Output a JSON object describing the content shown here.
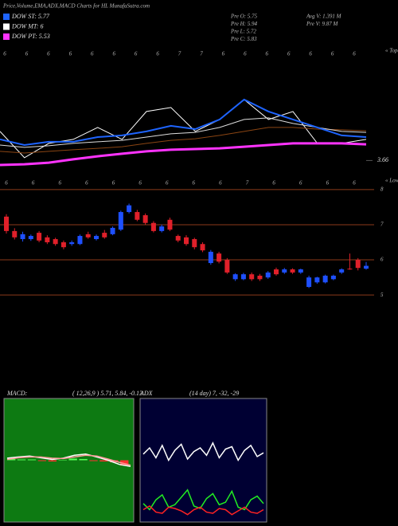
{
  "header": {
    "title": "Price,Volume,EMA,ADX,MACD Charts for HL MunafaSutra.com",
    "legend": [
      {
        "label": "DOW ST: 5.77",
        "color": "#1e64ff"
      },
      {
        "label": "DOW MT: 6",
        "color": "#ffffff"
      },
      {
        "label": "DOW PT: 5.53",
        "color": "#ff33ff"
      }
    ],
    "info": [
      "Pre  O: 5.75",
      "Pre  H: 5.94",
      "Pre  L: 5.72",
      "Pre  C: 5.83",
      "Avg V: 1.391 M",
      "Pre  V: 9.87 M"
    ]
  },
  "chart_data": [
    {
      "type": "line",
      "title": "« Topa",
      "date_labels": [
        "6",
        "6",
        "6",
        "6",
        "6",
        "6",
        "6",
        "6",
        "7",
        "7",
        "6",
        "6",
        "6",
        "6",
        "6",
        "6",
        "6"
      ],
      "ylim": [
        3.3,
        8.4
      ],
      "yticks": [
        3.66
      ],
      "series": [
        {
          "color": "#ffffff",
          "width": 1,
          "values": [
            4.9,
            3.78,
            4.39,
            4.56,
            5.07,
            4.56,
            5.75,
            5.92,
            4.9,
            5.41,
            6.26,
            5.41,
            5.75,
            4.39,
            4.39,
            4.56
          ]
        },
        {
          "color": "#8b4513",
          "width": 1,
          "values": [
            4.05,
            3.98,
            4.05,
            4.12,
            4.18,
            4.25,
            4.39,
            4.52,
            4.59,
            4.73,
            4.9,
            5.07,
            5.07,
            5.0,
            4.97,
            4.93
          ]
        },
        {
          "color": "#dddddd",
          "width": 1,
          "values": [
            4.32,
            4.22,
            4.29,
            4.39,
            4.46,
            4.52,
            4.66,
            4.8,
            4.86,
            5.07,
            5.41,
            5.48,
            5.24,
            5.07,
            4.9,
            4.86
          ]
        },
        {
          "color": "#1e64ff",
          "width": 2,
          "values": [
            4.56,
            4.32,
            4.46,
            4.46,
            4.66,
            4.73,
            4.9,
            5.14,
            5.0,
            5.41,
            6.26,
            5.75,
            5.41,
            5.07,
            4.73,
            4.66
          ]
        },
        {
          "color": "#ff33ff",
          "width": 3,
          "values": [
            3.47,
            3.5,
            3.57,
            3.71,
            3.84,
            3.95,
            4.05,
            4.12,
            4.15,
            4.18,
            4.25,
            4.32,
            4.39,
            4.39,
            4.39,
            4.35
          ]
        }
      ]
    },
    {
      "type": "candlestick",
      "title": "« Lowes",
      "date_labels": [
        "6",
        "6",
        "6",
        "6",
        "6",
        "6",
        "6",
        "6",
        "6",
        "7",
        "6",
        "6",
        "6",
        "6"
      ],
      "ylim": [
        4.8,
        8.2
      ],
      "yticks": [
        5,
        6,
        7,
        8
      ],
      "up_color": "#1e50ff",
      "down_color": "#e0202a",
      "grid_color": "#8b3a1a",
      "open": [
        7.23,
        6.82,
        6.59,
        6.59,
        6.77,
        6.64,
        6.59,
        6.5,
        6.45,
        6.45,
        6.73,
        6.59,
        6.77,
        6.73,
        6.86,
        7.36,
        7.36,
        7.27,
        7.05,
        6.82,
        7.14,
        6.68,
        6.64,
        6.59,
        6.45,
        5.91,
        6.18,
        6.0,
        5.45,
        5.45,
        5.59,
        5.55,
        5.5,
        5.73,
        5.64,
        5.73,
        5.64,
        5.23,
        5.36,
        5.36,
        5.45,
        5.64,
        5.75,
        6.0,
        5.75
      ],
      "high": [
        7.3,
        6.9,
        6.8,
        6.72,
        6.82,
        6.7,
        6.63,
        6.55,
        6.55,
        6.72,
        6.8,
        6.72,
        6.85,
        6.95,
        7.4,
        7.6,
        7.42,
        7.32,
        7.1,
        7.0,
        7.2,
        6.72,
        6.7,
        6.63,
        6.5,
        6.28,
        6.23,
        6.05,
        5.62,
        5.63,
        5.64,
        5.6,
        5.68,
        5.78,
        5.77,
        5.76,
        5.75,
        5.55,
        5.52,
        5.58,
        5.58,
        5.76,
        6.18,
        6.05,
        5.94
      ],
      "low": [
        6.75,
        6.58,
        6.52,
        6.54,
        6.5,
        6.45,
        6.4,
        6.3,
        6.4,
        6.42,
        6.6,
        6.55,
        6.6,
        6.7,
        6.82,
        7.32,
        7.1,
        7.0,
        6.78,
        6.78,
        6.82,
        6.5,
        6.4,
        6.3,
        6.22,
        5.86,
        5.9,
        5.6,
        5.4,
        5.42,
        5.4,
        5.4,
        5.46,
        5.55,
        5.6,
        5.6,
        5.6,
        5.2,
        5.32,
        5.33,
        5.42,
        5.6,
        5.72,
        5.7,
        5.72
      ],
      "close": [
        6.82,
        6.64,
        6.73,
        6.68,
        6.55,
        6.5,
        6.45,
        6.36,
        6.5,
        6.68,
        6.64,
        6.68,
        6.64,
        6.91,
        7.36,
        7.55,
        7.14,
        7.05,
        6.82,
        6.95,
        6.86,
        6.55,
        6.45,
        6.36,
        6.27,
        6.23,
        5.95,
        5.64,
        5.59,
        5.59,
        5.45,
        5.45,
        5.64,
        5.59,
        5.73,
        5.64,
        5.73,
        5.5,
        5.5,
        5.55,
        5.55,
        5.73,
        5.73,
        5.77,
        5.83
      ]
    },
    {
      "type": "macd",
      "title": "MACD:",
      "subtitle": "( 12,26,9 ) 5.71, 5.84, -0.13",
      "background": "#0d7a12",
      "ylim": [
        -1.5,
        1.5
      ],
      "series": [
        {
          "color": "#ffffff",
          "values": [
            0.05,
            0.08,
            0.1,
            0.06,
            0.02,
            0.05,
            0.12,
            0.15,
            0.08,
            0.0,
            -0.1,
            -0.15
          ]
        },
        {
          "color": "#ff9999",
          "values": [
            0.02,
            0.06,
            0.08,
            0.08,
            0.05,
            0.04,
            0.08,
            0.12,
            0.1,
            0.03,
            -0.05,
            -0.12
          ]
        }
      ],
      "histogram": {
        "up_color": "#55ff55",
        "down_color": "#ff3030",
        "values": [
          0.03,
          0.02,
          0.02,
          -0.02,
          -0.03,
          0.01,
          0.04,
          0.03,
          -0.02,
          -0.03,
          -0.05,
          -0.13
        ]
      }
    },
    {
      "type": "adx",
      "title": "ADX",
      "subtitle": "(14 day) 7, -32, -29",
      "background": "#000033",
      "ylim": [
        0,
        100
      ],
      "series": [
        {
          "color": "#ffffff",
          "values": [
            55,
            60,
            52,
            62,
            50,
            58,
            63,
            51,
            57,
            60,
            54,
            64,
            52,
            59,
            61,
            50,
            58,
            62,
            53,
            56
          ]
        },
        {
          "color": "#22ee22",
          "values": [
            15,
            10,
            18,
            22,
            12,
            14,
            20,
            26,
            13,
            11,
            19,
            23,
            14,
            16,
            25,
            12,
            10,
            18,
            21,
            15
          ]
        },
        {
          "color": "#ff2222",
          "values": [
            10,
            13,
            8,
            7,
            12,
            11,
            9,
            6,
            10,
            12,
            8,
            7,
            11,
            10,
            6,
            9,
            12,
            8,
            7,
            10
          ]
        }
      ]
    }
  ]
}
